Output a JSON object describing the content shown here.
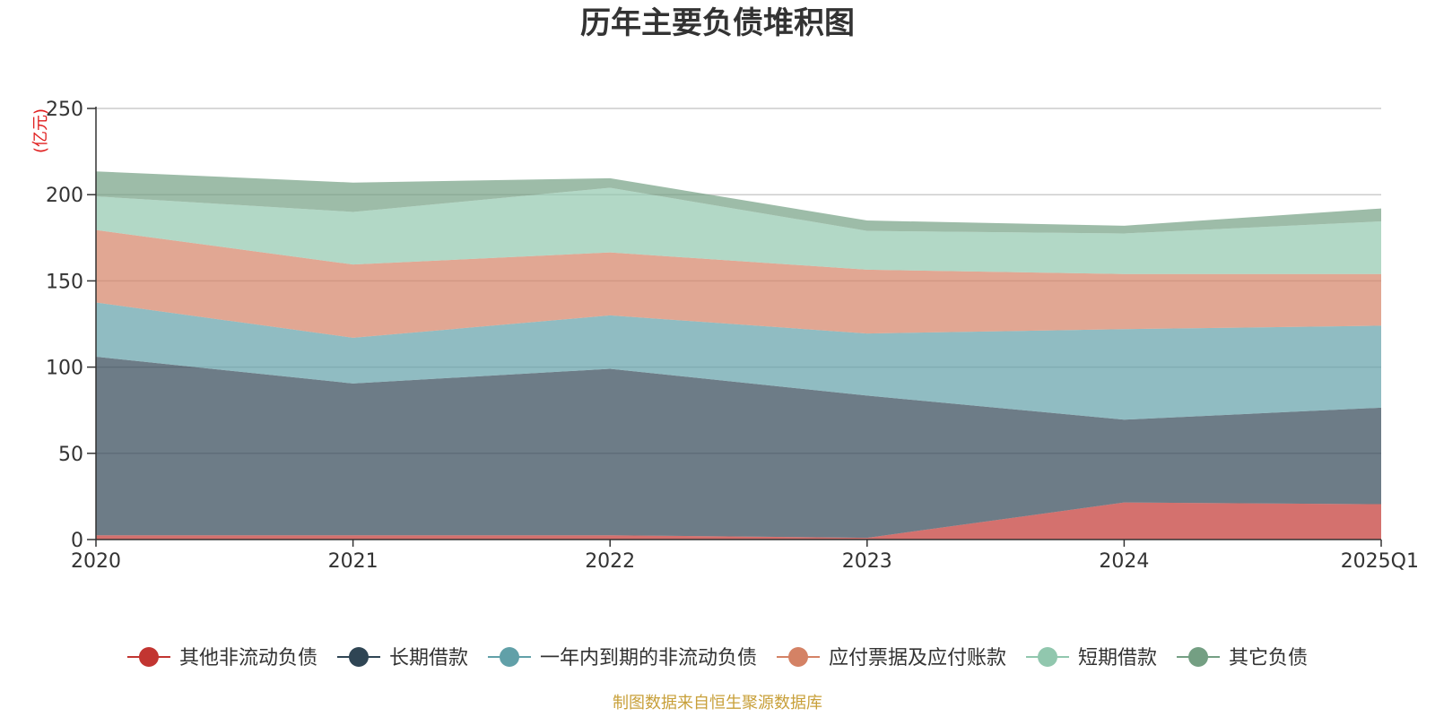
{
  "chart_data": {
    "type": "area",
    "stacked": true,
    "title": "历年主要负债堆积图",
    "unit_label": "(亿元)",
    "categories": [
      "2020",
      "2021",
      "2022",
      "2023",
      "2024",
      "2025Q1"
    ],
    "ylim": [
      0,
      250
    ],
    "yticks": [
      0,
      50,
      100,
      150,
      200,
      250
    ],
    "grid": true,
    "legend_position": "bottom",
    "series": [
      {
        "name": "其他非流动负债",
        "color": "#c23531",
        "values": [
          2.5,
          2.5,
          2.5,
          1.0,
          21.5,
          20.5
        ]
      },
      {
        "name": "长期借款",
        "color": "#2f4554",
        "values": [
          103.5,
          88.0,
          96.5,
          82.5,
          48.0,
          56.0
        ]
      },
      {
        "name": "一年内到期的非流动负债",
        "color": "#61a0a8",
        "values": [
          31.5,
          26.5,
          31.0,
          36.0,
          52.5,
          47.5
        ]
      },
      {
        "name": "应付票据及应付账款",
        "color": "#d48265",
        "values": [
          42.0,
          42.5,
          36.5,
          37.0,
          32.0,
          30.0
        ]
      },
      {
        "name": "短期借款",
        "color": "#91c7ae",
        "values": [
          19.5,
          30.5,
          37.5,
          22.5,
          23.5,
          30.5
        ]
      },
      {
        "name": "其它负债",
        "color": "#749f83",
        "values": [
          14.5,
          17.0,
          5.5,
          6.0,
          4.5,
          7.5
        ]
      }
    ]
  },
  "footer": {
    "source": "制图数据来自恒生聚源数据库"
  }
}
